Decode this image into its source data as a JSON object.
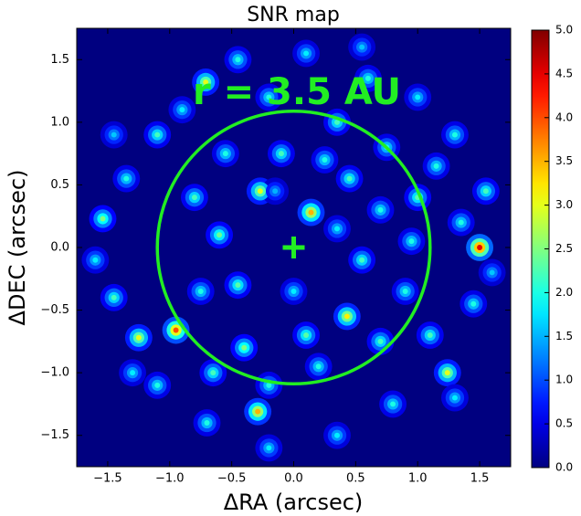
{
  "chart_data": {
    "type": "heatmap",
    "title": "SNR map",
    "xlabel": "ΔRA (arcsec)",
    "ylabel": "ΔDEC (arcsec)",
    "annotation": "r = 3.5 AU",
    "annotation_color": "#22ee22",
    "circle_radius": 1.1,
    "marker": {
      "x": 0,
      "y": 0
    },
    "background_value": 0,
    "xlim": [
      -1.75,
      1.75
    ],
    "ylim": [
      -1.75,
      1.75
    ],
    "xticks": [
      {
        "value": -1.5,
        "label": "−1.5"
      },
      {
        "value": -1,
        "label": "−1.0"
      },
      {
        "value": -0.5,
        "label": "−0.5"
      },
      {
        "value": 0,
        "label": "0.0"
      },
      0.5,
      {
        "value": 1,
        "label": "1.0"
      },
      1.5
    ],
    "yticks": [
      {
        "value": -1.5,
        "label": "−1.5"
      },
      {
        "value": -1,
        "label": "−1.0"
      },
      {
        "value": -0.5,
        "label": "−0.5"
      },
      {
        "value": 0,
        "label": "0.0"
      },
      0.5,
      {
        "value": 1,
        "label": "1.0"
      },
      1.5
    ],
    "clim": [
      0,
      5
    ],
    "cticks": [
      {
        "value": 0,
        "label": "0.0"
      },
      0.5,
      {
        "value": 1,
        "label": "1.0"
      },
      1.5,
      {
        "value": 2,
        "label": "2.0"
      },
      2.5,
      {
        "value": 3,
        "label": "3.0"
      },
      3.5,
      {
        "value": 4,
        "label": "4.0"
      },
      4.5,
      {
        "value": 5,
        "label": "5.0"
      }
    ],
    "colormap": "jet",
    "x": [
      1.5,
      -0.95,
      -1.25,
      0.43,
      -0.27,
      0.14,
      -0.71,
      -0.29,
      1.24,
      -1.54,
      -0.45,
      0.1,
      0.6,
      1.0,
      1.3,
      1.55,
      1.45,
      1.1,
      0.8,
      0.35,
      -0.2,
      -0.7,
      -1.1,
      -1.45,
      -1.6,
      -1.35,
      -1.1,
      -0.9,
      -0.2,
      0.35,
      0.75,
      1.0,
      0.7,
      0.45,
      -0.55,
      -0.8,
      -0.6,
      -0.45,
      -0.75,
      -0.4,
      0.1,
      0.2,
      0.7,
      0.9,
      0.55,
      0.95,
      -0.1,
      0.25,
      -1.3,
      1.3,
      1.35,
      -0.2,
      -0.65,
      1.15,
      0.55,
      -1.45,
      0.0,
      -0.15,
      0.35,
      1.6
    ],
    "y": [
      0.0,
      -0.66,
      -0.72,
      -0.55,
      0.45,
      0.28,
      1.32,
      -1.31,
      -1.0,
      0.23,
      1.5,
      1.55,
      1.35,
      1.2,
      0.9,
      0.45,
      -0.45,
      -0.7,
      -1.25,
      -1.5,
      -1.6,
      -1.4,
      -1.1,
      -0.4,
      -0.1,
      0.55,
      0.9,
      1.1,
      1.2,
      1.0,
      0.8,
      0.4,
      0.3,
      0.55,
      0.75,
      0.4,
      0.1,
      -0.3,
      -0.35,
      -0.8,
      -0.7,
      -0.95,
      -0.75,
      -0.35,
      -0.1,
      0.05,
      0.75,
      0.7,
      -1.0,
      -1.2,
      0.2,
      -1.1,
      -1.0,
      0.65,
      1.6,
      0.9,
      -0.35,
      0.45,
      0.15,
      -0.2
    ],
    "values": [
      4.5,
      4.0,
      3.0,
      3.2,
      3.0,
      3.5,
      3.0,
      3.5,
      3.0,
      2.5,
      2.0,
      1.8,
      2.0,
      1.8,
      2.0,
      2.2,
      2.0,
      2.2,
      2.0,
      1.8,
      1.8,
      2.0,
      2.0,
      2.2,
      1.8,
      2.0,
      2.2,
      1.8,
      2.0,
      2.2,
      2.0,
      2.3,
      2.0,
      2.2,
      2.0,
      2.2,
      2.4,
      2.3,
      2.0,
      2.5,
      2.3,
      2.0,
      2.2,
      2.0,
      2.2,
      2.0,
      2.2,
      2.0,
      1.8,
      1.8,
      2.0,
      2.0,
      2.2,
      2.0,
      1.6,
      1.6,
      1.8,
      1.5,
      1.8,
      1.6
    ]
  }
}
